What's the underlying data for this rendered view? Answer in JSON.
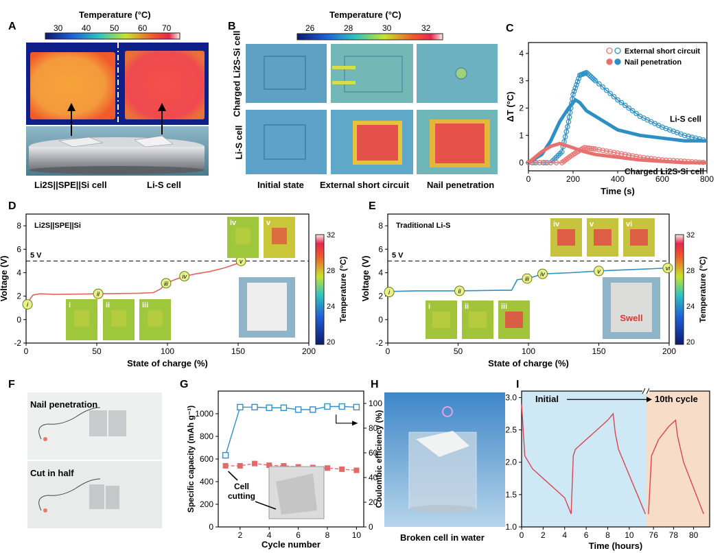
{
  "panel_labels": {
    "A": "A",
    "B": "B",
    "C": "C",
    "D": "D",
    "E": "E",
    "F": "F",
    "G": "G",
    "H": "H",
    "I": "I"
  },
  "panel_a": {
    "scale_title": "Temperature (°C)",
    "ticks": [
      "30",
      "40",
      "50",
      "60",
      "70"
    ],
    "left_label": "Li2S||SPE||Si cell",
    "right_label": "Li-S cell"
  },
  "panel_b": {
    "scale_title": "Temperature (°C)",
    "ticks": [
      "26",
      "28",
      "30",
      "32"
    ],
    "row_labels": [
      "Charged Li2S-Si cell",
      "Li-S cell"
    ],
    "col_labels": [
      "Initial state",
      "External short circuit",
      "Nail penetration"
    ]
  },
  "chart_data": [
    {
      "panel": "C",
      "type": "line",
      "xlabel": "Time (s)",
      "ylabel": "ΔT (°C)",
      "xlim": [
        0,
        800
      ],
      "ylim": [
        -0.3,
        4.4
      ],
      "xticks": [
        "0",
        "200",
        "400",
        "600",
        "800"
      ],
      "yticks": [
        "0",
        "1",
        "2",
        "3",
        "4"
      ],
      "legend": [
        "External short circuit",
        "Nail penetration"
      ],
      "annotations": [
        "Li-S cell",
        "Charged Li2S-Si cell"
      ],
      "series": [
        {
          "name": "External short circuit",
          "cell": "Li-S cell",
          "x": [
            0,
            100,
            150,
            180,
            200,
            230,
            260,
            300,
            400,
            500,
            600,
            700,
            800
          ],
          "y": [
            0,
            0,
            0.4,
            1.5,
            2.5,
            3.2,
            3.3,
            3.0,
            2.3,
            1.7,
            1.3,
            1.0,
            0.8
          ]
        },
        {
          "name": "Nail penetration",
          "cell": "Li-S cell",
          "x": [
            0,
            60,
            100,
            140,
            180,
            210,
            230,
            260,
            300,
            400,
            500,
            600,
            700,
            800
          ],
          "y": [
            0,
            0.3,
            0.8,
            1.5,
            2.0,
            2.3,
            2.2,
            1.9,
            1.7,
            1.2,
            1.0,
            0.9,
            0.8,
            0.8
          ]
        },
        {
          "name": "External short circuit",
          "cell": "Charged Li2S-Si cell",
          "x": [
            0,
            150,
            200,
            250,
            300,
            400,
            500,
            600,
            700,
            800
          ],
          "y": [
            0,
            0,
            0.3,
            0.55,
            0.5,
            0.35,
            0.2,
            0.1,
            0.05,
            0
          ]
        },
        {
          "name": "Nail penetration",
          "cell": "Charged Li2S-Si cell",
          "x": [
            0,
            60,
            100,
            140,
            180,
            250,
            300,
            400,
            500,
            600,
            700,
            800
          ],
          "y": [
            0,
            0.4,
            0.6,
            0.7,
            0.6,
            0.4,
            0.3,
            0.2,
            0.1,
            0.05,
            0,
            0
          ]
        }
      ]
    },
    {
      "panel": "D",
      "type": "line",
      "title": "Li2S||SPE||Si",
      "xlabel": "State of charge (%)",
      "ylabel": "Voltage (V)",
      "xlim": [
        0,
        200
      ],
      "ylim": [
        -2,
        9
      ],
      "xticks": [
        "0",
        "50",
        "100",
        "150",
        "200"
      ],
      "yticks": [
        "-2",
        "0",
        "2",
        "4",
        "6",
        "8"
      ],
      "ref_line_label": "5 V",
      "ref_line": 5,
      "markers": [
        "i",
        "ii",
        "iii",
        "iv",
        "v"
      ],
      "marker_x": [
        1,
        51,
        99,
        112,
        152
      ],
      "x": [
        0,
        1,
        3,
        5,
        10,
        20,
        50,
        80,
        90,
        95,
        99,
        105,
        112,
        120,
        130,
        140,
        150,
        152
      ],
      "y": [
        1.2,
        1.3,
        1.8,
        2.1,
        2.2,
        2.15,
        2.2,
        2.25,
        2.3,
        2.6,
        3.1,
        3.4,
        3.7,
        3.9,
        4.1,
        4.4,
        4.8,
        5.0
      ],
      "colorbar": {
        "title": "Temperature (°C)",
        "ticks": [
          "32",
          "28",
          "24",
          "20"
        ]
      },
      "inset_labels": [
        "i",
        "ii",
        "iii",
        "iv",
        "v"
      ]
    },
    {
      "panel": "E",
      "type": "line",
      "title": "Traditional Li-S",
      "xlabel": "State of charge (%)",
      "ylabel": "Voltage (V)",
      "xlim": [
        0,
        200
      ],
      "ylim": [
        -2,
        9
      ],
      "xticks": [
        "0",
        "50",
        "100",
        "150",
        "200"
      ],
      "yticks": [
        "-2",
        "0",
        "2",
        "4",
        "6",
        "8"
      ],
      "ref_line_label": "5 V",
      "ref_line": 5,
      "markers": [
        "i",
        "ii",
        "iii",
        "iv",
        "v",
        "vi"
      ],
      "marker_x": [
        1,
        51,
        99,
        110,
        150,
        199
      ],
      "x": [
        0,
        2,
        20,
        50,
        80,
        88,
        92,
        99,
        105,
        110,
        130,
        150,
        170,
        190,
        199
      ],
      "y": [
        2.3,
        2.4,
        2.45,
        2.45,
        2.5,
        2.5,
        3.4,
        3.5,
        3.7,
        3.9,
        4.0,
        4.15,
        4.25,
        4.35,
        4.4
      ],
      "colorbar": {
        "title": "Temperature (°C)",
        "ticks": [
          "32",
          "28",
          "24",
          "20"
        ]
      },
      "swell_label": "Swell",
      "inset_labels": [
        "i",
        "ii",
        "iii",
        "iv",
        "v",
        "vi"
      ]
    },
    {
      "panel": "G",
      "type": "scatter",
      "xlabel": "Cycle number",
      "ylabel": "Specific capacity (mAh g⁻¹)",
      "y2label": "Coulombic efficiency (%)",
      "xlim": [
        0.5,
        10.5
      ],
      "ylim": [
        0,
        1200
      ],
      "y2lim": [
        0,
        110
      ],
      "xticks": [
        "2",
        "4",
        "6",
        "8",
        "10"
      ],
      "yticks": [
        "0",
        "200",
        "400",
        "600",
        "800",
        "1000"
      ],
      "y2ticks": [
        "0",
        "20",
        "40",
        "60",
        "80",
        "100"
      ],
      "annotation": "Cell cutting",
      "series": [
        {
          "name": "Specific capacity",
          "x": [
            1,
            2,
            3,
            4,
            5,
            6,
            7,
            8,
            9,
            10
          ],
          "y": [
            540,
            540,
            560,
            545,
            540,
            530,
            525,
            520,
            510,
            500
          ]
        },
        {
          "name": "Coulombic efficiency",
          "axis": "right",
          "x": [
            1,
            2,
            3,
            4,
            5,
            6,
            7,
            8,
            9,
            10
          ],
          "y": [
            58,
            97,
            97,
            96.5,
            96.5,
            95,
            95,
            97.5,
            97.5,
            97
          ]
        }
      ]
    },
    {
      "panel": "I",
      "type": "line",
      "xlabel": "Time (hours)",
      "ylabel": "Voltage (V)",
      "ylim": [
        1.0,
        3.1
      ],
      "xticks": [
        "0",
        "2",
        "4",
        "6",
        "8",
        "10",
        "76",
        "78",
        "80"
      ],
      "yticks": [
        "1.0",
        "1.5",
        "2.0",
        "2.5",
        "3.0"
      ],
      "labels": [
        "Initial",
        "10th cycle"
      ],
      "x": [
        0,
        0.3,
        1,
        2,
        3,
        4,
        4.6,
        4.8,
        5,
        6,
        7,
        8,
        8.5,
        8.7,
        9,
        10,
        11,
        11.5,
        75.5,
        75.8,
        76.5,
        77.5,
        78.2,
        78.4,
        79,
        80,
        81
      ],
      "y": [
        2.9,
        2.1,
        1.9,
        1.75,
        1.6,
        1.45,
        1.2,
        2.1,
        2.2,
        2.35,
        2.5,
        2.65,
        2.75,
        2.45,
        2.2,
        1.8,
        1.4,
        1.2,
        1.2,
        2.1,
        2.35,
        2.55,
        2.65,
        2.4,
        2.0,
        1.6,
        1.2
      ]
    }
  ],
  "panel_f": {
    "top_label": "Nail penetration",
    "bottom_label": "Cut in half"
  },
  "panel_h": {
    "caption": "Broken cell in water"
  }
}
